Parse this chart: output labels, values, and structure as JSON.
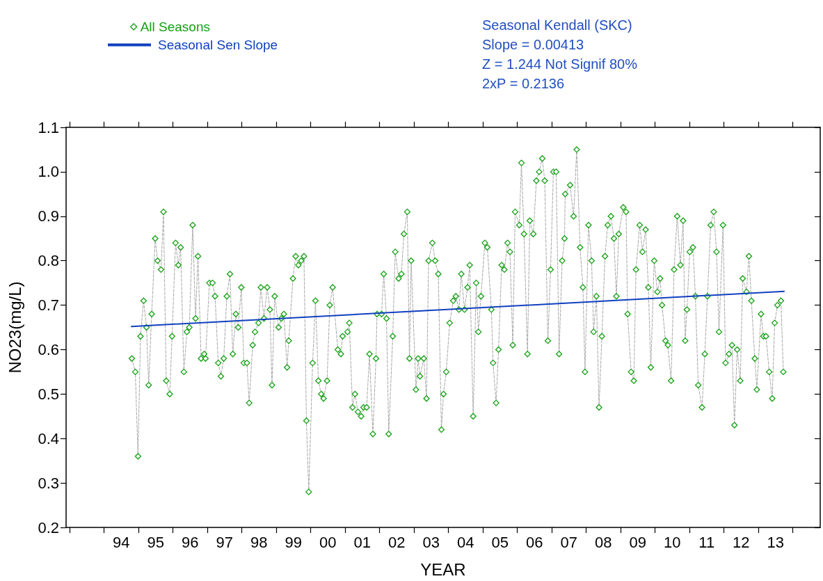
{
  "chart_data": {
    "type": "line",
    "xlabel": "YEAR",
    "ylabel": "NO23(mg/L)",
    "annotations": [
      "Seasonal Kendall (SKC)",
      "Slope = 0.00413",
      "Z = 1.244 Not Signif 80%",
      "2xP = 0.2136"
    ],
    "xlim": [
      "1992-11-24",
      "2014-10-19"
    ],
    "xticks": [
      {
        "value": "1993-01-01",
        "label": null
      },
      {
        "value": "1994-01-01",
        "label": null
      },
      {
        "value": "1994-07-02",
        "label": "94"
      },
      {
        "value": "1995-01-01",
        "label": null
      },
      {
        "value": "1995-07-02",
        "label": "95"
      },
      {
        "value": "1996-01-01",
        "label": null
      },
      {
        "value": "1996-07-02",
        "label": "96"
      },
      {
        "value": "1997-01-01",
        "label": null
      },
      {
        "value": "1997-07-02",
        "label": "97"
      },
      {
        "value": "1998-01-01",
        "label": null
      },
      {
        "value": "1998-07-02",
        "label": "98"
      },
      {
        "value": "1999-01-01",
        "label": null
      },
      {
        "value": "1999-07-02",
        "label": "99"
      },
      {
        "value": "2000-01-01",
        "label": null
      },
      {
        "value": "2000-07-02",
        "label": "00"
      },
      {
        "value": "2001-01-01",
        "label": null
      },
      {
        "value": "2001-07-02",
        "label": "01"
      },
      {
        "value": "2002-01-01",
        "label": null
      },
      {
        "value": "2002-07-02",
        "label": "02"
      },
      {
        "value": "2003-01-01",
        "label": null
      },
      {
        "value": "2003-07-02",
        "label": "03"
      },
      {
        "value": "2004-01-01",
        "label": null
      },
      {
        "value": "2004-07-02",
        "label": "04"
      },
      {
        "value": "2005-01-01",
        "label": null
      },
      {
        "value": "2005-07-02",
        "label": "05"
      },
      {
        "value": "2006-01-01",
        "label": null
      },
      {
        "value": "2006-07-02",
        "label": "06"
      },
      {
        "value": "2007-01-01",
        "label": null
      },
      {
        "value": "2007-07-02",
        "label": "07"
      },
      {
        "value": "2008-01-01",
        "label": null
      },
      {
        "value": "2008-07-02",
        "label": "08"
      },
      {
        "value": "2009-01-01",
        "label": null
      },
      {
        "value": "2009-07-02",
        "label": "09"
      },
      {
        "value": "2010-01-01",
        "label": null
      },
      {
        "value": "2010-07-02",
        "label": "10"
      },
      {
        "value": "2011-01-01",
        "label": null
      },
      {
        "value": "2011-07-02",
        "label": "11"
      },
      {
        "value": "2012-01-01",
        "label": null
      },
      {
        "value": "2012-07-02",
        "label": "12"
      },
      {
        "value": "2013-01-01",
        "label": null
      },
      {
        "value": "2013-07-02",
        "label": "13"
      },
      {
        "value": "2014-01-01",
        "label": null
      }
    ],
    "ylim": [
      0.2,
      1.1
    ],
    "yticks": [
      0.2,
      0.3,
      0.4,
      0.5,
      0.6,
      0.7,
      0.8,
      0.9,
      {
        "value": 1,
        "label": "1.0"
      },
      1.1
    ],
    "grid": false,
    "legend": "top left",
    "marker": "diamond",
    "line_style": "dashed",
    "series": [
      {
        "name": "All Seasons",
        "color": "#14a014",
        "x": [
          "1994-10-22",
          "1994-11-28",
          "1994-12-27",
          "1995-01-22",
          "1995-02-24",
          "1995-03-27",
          "1995-04-19",
          "1995-05-21",
          "1995-06-27",
          "1995-07-22",
          "1995-08-28",
          "1995-09-23",
          "1995-10-22",
          "1995-11-28",
          "1995-12-23",
          "1996-01-29",
          "1996-02-28",
          "1996-03-23",
          "1996-04-26",
          "1996-05-28",
          "1996-06-23",
          "1996-07-29",
          "1996-08-28",
          "1996-09-23",
          "1996-10-26",
          "1996-11-28",
          "1996-12-12",
          "1997-01-22",
          "1997-02-24",
          "1997-03-23",
          "1997-04-26",
          "1997-05-24",
          "1997-06-23",
          "1997-07-26",
          "1997-08-28",
          "1997-09-27",
          "1997-10-29",
          "1997-11-24",
          "1997-12-27",
          "1998-01-22",
          "1998-02-24",
          "1998-03-20",
          "1998-04-26",
          "1998-05-21",
          "1998-06-27",
          "1998-07-22",
          "1998-08-24",
          "1998-09-27",
          "1998-10-26",
          "1998-11-17",
          "1998-12-16",
          "1999-01-26",
          "1999-02-24",
          "1999-03-23",
          "1999-04-26",
          "1999-05-14",
          "1999-06-27",
          "1999-07-26",
          "1999-08-24",
          "1999-09-23",
          "1999-10-22",
          "1999-11-17",
          "1999-12-12",
          "2000-01-22",
          "2000-02-21",
          "2000-03-23",
          "2000-04-22",
          "2000-05-17",
          "2000-06-23",
          "2000-07-22",
          "2000-08-21",
          "2000-10-15",
          "2000-11-17",
          "2000-12-05",
          "2001-01-26",
          "2001-02-14",
          "2001-03-20",
          "2001-04-15",
          "2001-05-17",
          "2001-06-20",
          "2001-07-15",
          "2001-08-17",
          "2001-09-16",
          "2001-10-22",
          "2001-11-24",
          "2001-12-05",
          "2002-01-22",
          "2002-02-14",
          "2002-03-16",
          "2002-04-08",
          "2002-05-21",
          "2002-06-16",
          "2002-07-22",
          "2002-08-21",
          "2002-09-16",
          "2002-10-22",
          "2002-11-14",
          "2002-12-02",
          "2003-01-22",
          "2003-02-14",
          "2003-03-05",
          "2003-04-15",
          "2003-05-14",
          "2003-06-05",
          "2003-07-15",
          "2003-08-14",
          "2003-09-16",
          "2003-10-19",
          "2003-11-10",
          "2003-12-09",
          "2004-01-15",
          "2004-02-21",
          "2004-03-20",
          "2004-04-22",
          "2004-05-17",
          "2004-06-20",
          "2004-07-22",
          "2004-08-14",
          "2004-09-20",
          "2004-10-22",
          "2004-11-14",
          "2004-12-12",
          "2005-01-22",
          "2005-02-17",
          "2005-04-01",
          "2005-04-19",
          "2005-05-21",
          "2005-06-16",
          "2005-07-19",
          "2005-08-17",
          "2005-09-20",
          "2005-10-15",
          "2005-11-14",
          "2005-12-09",
          "2006-01-22",
          "2006-02-14",
          "2006-03-13",
          "2006-04-19",
          "2006-05-14",
          "2006-06-20",
          "2006-07-22",
          "2006-08-21",
          "2006-09-23",
          "2006-10-19",
          "2006-11-21",
          "2006-12-20",
          "2007-01-19",
          "2007-02-17",
          "2007-03-20",
          "2007-04-22",
          "2007-05-17",
          "2007-05-24",
          "2007-07-15",
          "2007-08-21",
          "2007-09-23",
          "2007-10-29",
          "2007-11-28",
          "2007-12-20",
          "2008-01-26",
          "2008-02-28",
          "2008-03-20",
          "2008-04-19",
          "2008-05-17",
          "2008-06-16",
          "2008-07-19",
          "2008-08-17",
          "2008-09-20",
          "2008-10-22",
          "2008-11-17",
          "2008-12-12",
          "2009-01-29",
          "2009-02-28",
          "2009-03-16",
          "2009-04-22",
          "2009-05-21",
          "2009-06-13",
          "2009-07-22",
          "2009-08-21",
          "2009-09-23",
          "2009-10-22",
          "2009-11-17",
          "2009-12-23",
          "2010-01-26",
          "2010-02-24",
          "2010-03-16",
          "2010-04-22",
          "2010-05-17",
          "2010-06-20",
          "2010-07-22",
          "2010-08-24",
          "2010-09-27",
          "2010-10-26",
          "2010-11-17",
          "2010-12-05",
          "2011-01-04",
          "2011-02-07",
          "2011-03-05",
          "2011-04-04",
          "2011-05-14",
          "2011-06-13",
          "2011-07-11",
          "2011-08-14",
          "2011-09-16",
          "2011-10-15",
          "2011-11-10",
          "2011-12-23",
          "2012-01-19",
          "2012-02-24",
          "2012-03-27",
          "2012-04-22",
          "2012-05-21",
          "2012-06-23",
          "2012-07-19",
          "2012-08-28",
          "2012-09-23",
          "2012-10-19",
          "2012-11-24",
          "2012-12-16",
          "2013-01-29",
          "2013-02-24",
          "2013-03-23",
          "2013-04-26",
          "2013-05-28",
          "2013-06-23",
          "2013-07-22",
          "2013-08-28",
          "2013-09-23"
        ],
        "values": [
          0.58,
          0.55,
          0.36,
          0.63,
          0.71,
          0.65,
          0.52,
          0.68,
          0.85,
          0.8,
          0.78,
          0.91,
          0.53,
          0.5,
          0.63,
          0.84,
          0.79,
          0.83,
          0.55,
          0.64,
          0.65,
          0.88,
          0.67,
          0.81,
          0.58,
          0.59,
          0.58,
          0.75,
          0.75,
          0.72,
          0.57,
          0.54,
          0.58,
          0.72,
          0.77,
          0.59,
          0.68,
          0.65,
          0.74,
          0.57,
          0.57,
          0.48,
          0.61,
          0.64,
          0.66,
          0.74,
          0.67,
          0.74,
          0.69,
          0.52,
          0.72,
          0.65,
          0.67,
          0.68,
          0.56,
          0.62,
          0.76,
          0.81,
          0.79,
          0.8,
          0.81,
          0.44,
          0.28,
          0.57,
          0.71,
          0.53,
          0.5,
          0.49,
          0.53,
          0.7,
          0.74,
          0.6,
          0.59,
          0.63,
          0.64,
          0.66,
          0.47,
          0.5,
          0.46,
          0.45,
          0.47,
          0.47,
          0.59,
          0.41,
          0.58,
          0.68,
          0.68,
          0.77,
          0.67,
          0.41,
          0.63,
          0.82,
          0.76,
          0.77,
          0.86,
          0.91,
          0.58,
          0.8,
          0.51,
          0.58,
          0.54,
          0.58,
          0.49,
          0.8,
          0.84,
          0.8,
          0.77,
          0.42,
          0.5,
          0.55,
          0.66,
          0.71,
          0.72,
          0.69,
          0.77,
          0.69,
          0.74,
          0.79,
          0.45,
          0.75,
          0.64,
          0.72,
          0.84,
          0.83,
          0.69,
          0.57,
          0.48,
          0.6,
          0.79,
          0.78,
          0.84,
          0.82,
          0.61,
          0.91,
          0.88,
          1.02,
          0.86,
          0.59,
          0.89,
          0.86,
          0.98,
          1.0,
          1.03,
          0.98,
          0.62,
          0.78,
          1.0,
          1.0,
          0.59,
          0.8,
          0.85,
          0.95,
          0.97,
          0.9,
          1.05,
          0.83,
          0.74,
          0.55,
          0.88,
          0.8,
          0.64,
          0.72,
          0.47,
          0.63,
          0.81,
          0.88,
          0.9,
          0.85,
          0.72,
          0.86,
          0.92,
          0.91,
          0.68,
          0.55,
          0.53,
          0.78,
          0.88,
          0.82,
          0.87,
          0.74,
          0.56,
          0.8,
          0.73,
          0.76,
          0.7,
          0.62,
          0.61,
          0.53,
          0.78,
          0.9,
          0.79,
          0.89,
          0.62,
          0.69,
          0.82,
          0.83,
          0.72,
          0.52,
          0.47,
          0.59,
          0.72,
          0.88,
          0.91,
          0.82,
          0.64,
          0.88,
          0.57,
          0.59,
          0.61,
          0.43,
          0.6,
          0.53,
          0.76,
          0.73,
          0.81,
          0.71,
          0.58,
          0.51,
          0.68,
          0.63,
          0.63,
          0.55,
          0.49,
          0.66,
          0.7,
          0.71,
          0.55
        ]
      },
      {
        "name": "Seasonal Sen Slope",
        "color": "#1040c0",
        "marker": "none",
        "line_style": "solid",
        "x": [
          "1994-10-19",
          "2013-10-01"
        ],
        "values": [
          0.652,
          0.731
        ]
      }
    ]
  }
}
